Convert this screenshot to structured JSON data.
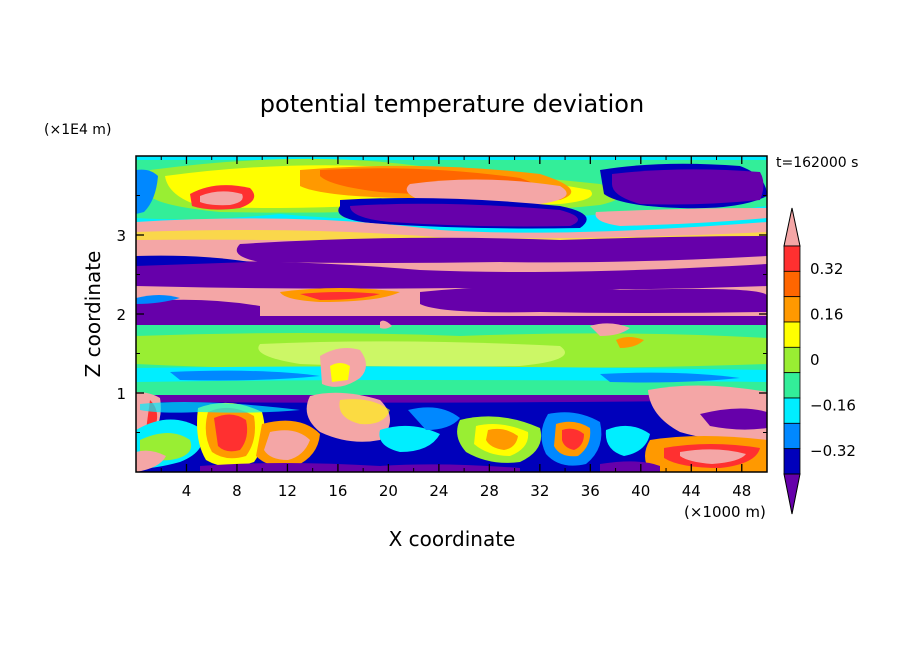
{
  "chart_data": {
    "type": "heatmap",
    "title": "potential temperature deviation",
    "time_label": "t=162000 s",
    "xlabel": "X coordinate",
    "ylabel": "Z coordinate",
    "x_unit": "(×1000 m)",
    "y_unit": "(×1E4 m)",
    "x_range": [
      0,
      50
    ],
    "y_range": [
      0,
      4
    ],
    "x_ticks": [
      {
        "v": 4,
        "label": "4"
      },
      {
        "v": 8,
        "label": "8"
      },
      {
        "v": 12,
        "label": "12"
      },
      {
        "v": 16,
        "label": "16"
      },
      {
        "v": 20,
        "label": "20"
      },
      {
        "v": 24,
        "label": "24"
      },
      {
        "v": 28,
        "label": "28"
      },
      {
        "v": 32,
        "label": "32"
      },
      {
        "v": 36,
        "label": "36"
      },
      {
        "v": 40,
        "label": "40"
      },
      {
        "v": 44,
        "label": "44"
      },
      {
        "v": 48,
        "label": "48"
      }
    ],
    "y_ticks": [
      {
        "v": 1,
        "label": "1"
      },
      {
        "v": 2,
        "label": "2"
      },
      {
        "v": 3,
        "label": "3"
      }
    ],
    "colorbar": {
      "labels": [
        {
          "v": 0.32,
          "label": "0.32"
        },
        {
          "v": 0.16,
          "label": "0.16"
        },
        {
          "v": 0,
          "label": "0"
        },
        {
          "v": -0.16,
          "label": "−0.16"
        },
        {
          "v": -0.32,
          "label": "−0.32"
        }
      ],
      "colors_top_to_bottom": [
        "#f4a6a6",
        "#ff3030",
        "#ff6600",
        "#ff9900",
        "#ffff00",
        "#99ee33",
        "#33ee99",
        "#00eeff",
        "#0088ff",
        "#0000bb",
        "#6600aa"
      ]
    },
    "colors": {
      "pink": "#f4a6a6",
      "red": "#ff3030",
      "orange": "#ff8800",
      "yellow": "#ffff00",
      "lime": "#99ee33",
      "green": "#33ee99",
      "cyan": "#00eeff",
      "blue": "#0088ff",
      "navy": "#0000bb",
      "purple": "#6600aa"
    }
  }
}
